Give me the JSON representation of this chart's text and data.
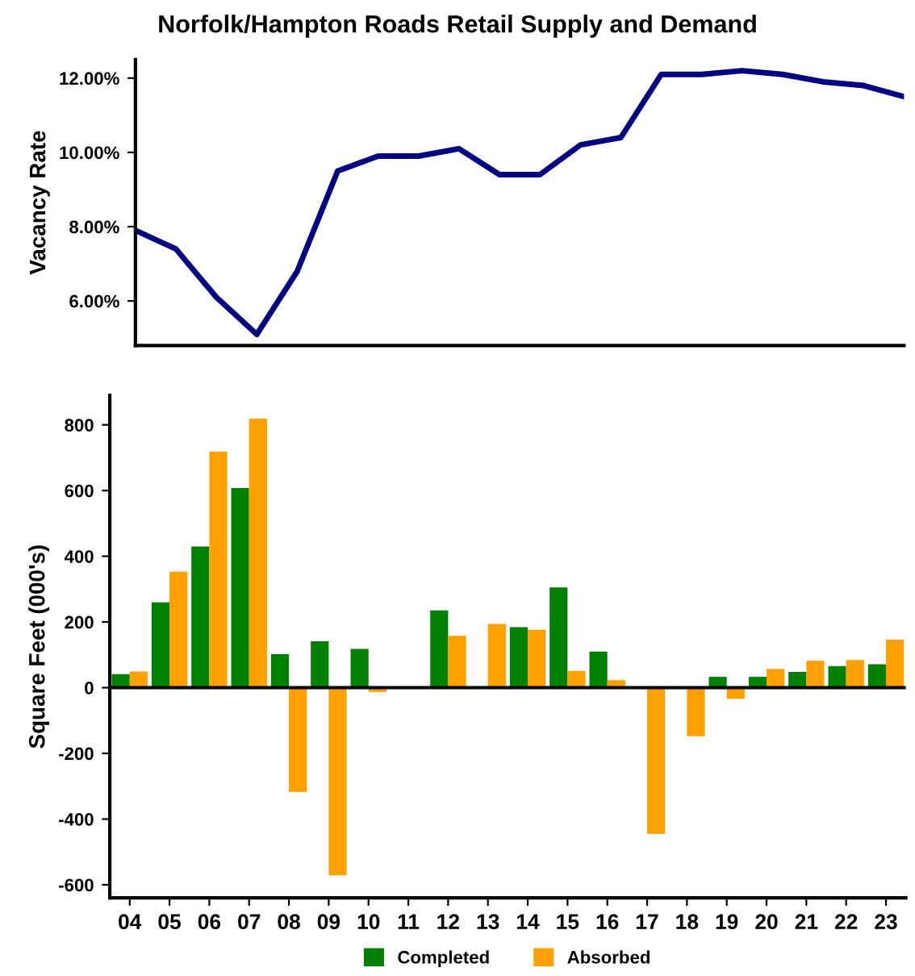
{
  "chart_data": [
    {
      "type": "line",
      "title": "Norfolk/Hampton Roads Retail Supply and Demand",
      "ylabel": "Vacancy Rate",
      "categories": [
        null,
        null,
        null,
        null,
        null,
        null,
        null,
        null,
        null,
        null,
        null,
        null,
        null,
        null,
        null,
        null,
        null,
        null,
        null,
        null
      ],
      "series": [
        {
          "color": "#000080",
          "values": [
            7.9,
            7.4,
            6.1,
            5.1,
            6.8,
            9.5,
            9.9,
            9.9,
            10.1,
            9.4,
            9.4,
            10.2,
            10.4,
            12.1,
            12.1,
            12.2,
            12.1,
            11.9,
            11.8,
            11.5
          ]
        }
      ],
      "ylim": [
        4.8,
        12.5
      ],
      "yticks": [
        {
          "value": 6,
          "label": "6.00%"
        },
        {
          "value": 8,
          "label": "8.00%"
        },
        {
          "value": 10,
          "label": "10.00%"
        },
        {
          "value": 12,
          "label": "12.00%"
        }
      ],
      "grid": false,
      "legend": false,
      "marker": "none",
      "line_style": "solid"
    },
    {
      "type": "bar",
      "ylabel": "Square Feet (000's)",
      "categories": [
        "04",
        "05",
        "06",
        "07",
        "08",
        "09",
        "10",
        "11",
        "12",
        "13",
        "14",
        "15",
        "16",
        "17",
        "18",
        "19",
        "20",
        "21",
        "22",
        "23"
      ],
      "series": [
        {
          "name": "Completed",
          "color": "#008000",
          "values": [
            41,
            260,
            430,
            608,
            102,
            141,
            118,
            0,
            235,
            0,
            184,
            305,
            110,
            0,
            0,
            33,
            33,
            48,
            66,
            71
          ]
        },
        {
          "name": "Absorbed",
          "color": "#ff9f00",
          "values": [
            49,
            353,
            719,
            819,
            -317,
            -571,
            -13,
            0,
            158,
            194,
            176,
            51,
            23,
            -445,
            -148,
            -34,
            57,
            82,
            84,
            146
          ]
        }
      ],
      "ref_lines": [
        {
          "axis": "y",
          "value": 0,
          "color": "#000000"
        }
      ],
      "ylim": [
        -640,
        890
      ],
      "yticks": [
        -600,
        -400,
        -200,
        0,
        200,
        400,
        600,
        800
      ],
      "grid": false,
      "legend": "bottom"
    }
  ]
}
